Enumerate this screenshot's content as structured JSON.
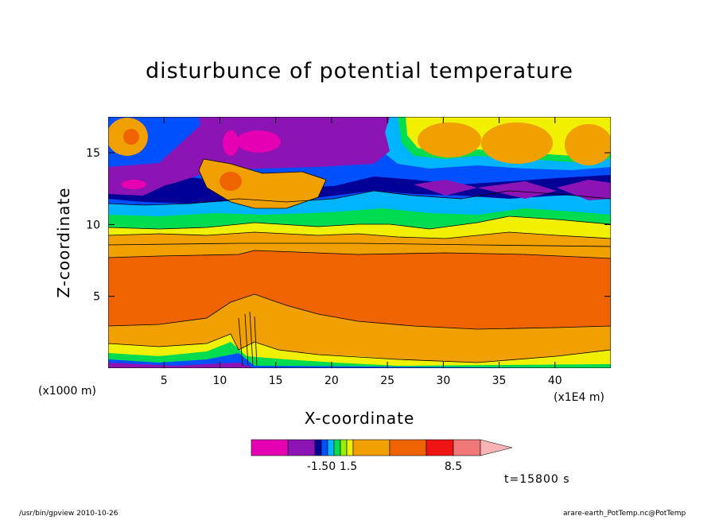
{
  "chart_data": {
    "type": "heatmap",
    "title": "disturbunce of potential temperature",
    "xlabel": "X-coordinate",
    "ylabel": "Z-coordinate",
    "x_unit_left": "(x1000 m)",
    "x_unit_right": "(x1E4 m)",
    "xlim": [
      0,
      45
    ],
    "ylim": [
      0,
      17.5
    ],
    "x_ticks": [
      5,
      10,
      15,
      20,
      25,
      30,
      35,
      40
    ],
    "y_ticks": [
      5,
      10,
      15
    ],
    "colorbar": {
      "colors": [
        "#e600b4",
        "#8c14b4",
        "#000096",
        "#0050ff",
        "#00b4ff",
        "#00dc50",
        "#96f000",
        "#f0f000",
        "#f0a000",
        "#f06400",
        "#f01414",
        "#f07878",
        "#f8b4b4"
      ],
      "labels": [
        "-1.50",
        "1.5",
        "8.5"
      ]
    },
    "time_label": "t=15800 s"
  },
  "footer": {
    "left": "/usr/bin/gpview   2010-10-26",
    "right": "arare-earth_PotTemp.nc@PotTemp"
  }
}
